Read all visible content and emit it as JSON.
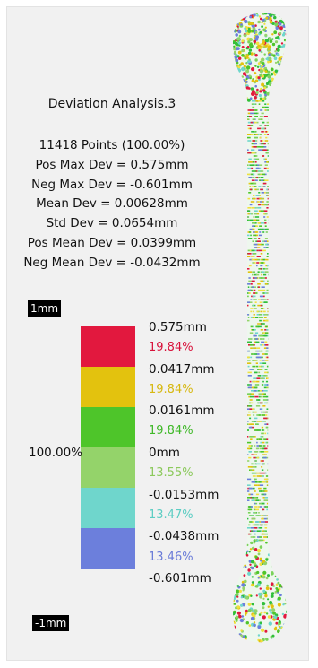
{
  "analysis": {
    "title": "Deviation Analysis.3",
    "stats": [
      "11418 Points (100.00%)",
      "Pos Max Dev = 0.575mm",
      "Neg Max Dev = -0.601mm",
      "Mean Dev = 0.00628mm",
      "Std Dev = 0.0654mm",
      "Pos Mean Dev = 0.0399mm",
      "Neg Mean Dev = -0.0432mm"
    ]
  },
  "scale": {
    "top_tag": "1mm",
    "bottom_tag": "-1mm",
    "total_percent": "100.00%",
    "thresholds": [
      "0.575mm",
      "0.0417mm",
      "0.0161mm",
      "0mm",
      "-0.0153mm",
      "-0.0438mm",
      "-0.601mm"
    ],
    "bands": [
      {
        "percent": "19.84%",
        "color": "#e2183e",
        "text_color": "#d8113a"
      },
      {
        "percent": "19.84%",
        "color": "#e3c20e",
        "text_color": "#d7b811"
      },
      {
        "percent": "19.84%",
        "color": "#4ec52a",
        "text_color": "#3fb828"
      },
      {
        "percent": "13.55%",
        "color": "#94d36a",
        "text_color": "#8cc95c"
      },
      {
        "percent": "13.47%",
        "color": "#6fd6cc",
        "text_color": "#5ccdc3"
      },
      {
        "percent": "13.46%",
        "color": "#6c7fdc",
        "text_color": "#6a7bd8"
      }
    ]
  },
  "viewport": {
    "model": "bone-point-cloud"
  }
}
